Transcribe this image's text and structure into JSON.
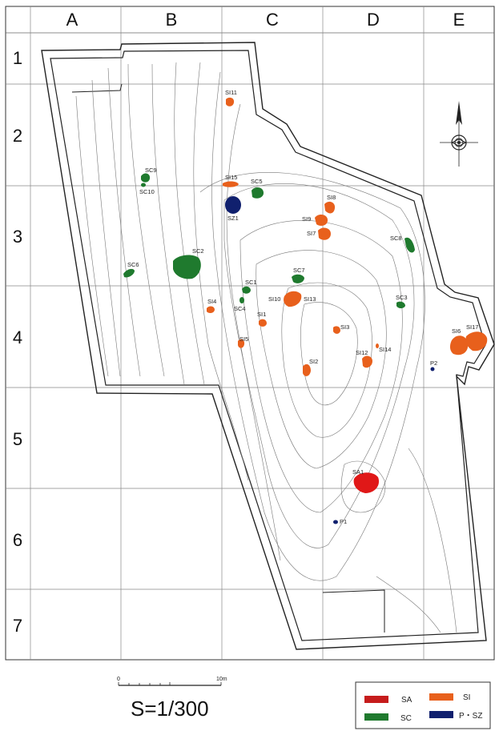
{
  "grid": {
    "columns": [
      "A",
      "B",
      "C",
      "D",
      "E"
    ],
    "rows": [
      "1",
      "2",
      "3",
      "4",
      "5",
      "6",
      "7"
    ]
  },
  "colors": {
    "SA": "#e01818",
    "SI": "#e8601c",
    "SC": "#1f7a2e",
    "PSZ": "#10206e"
  },
  "features": [
    {
      "label": "SI11",
      "type": "SI"
    },
    {
      "label": "SC9",
      "type": "SC"
    },
    {
      "label": "SC10",
      "type": "SC"
    },
    {
      "label": "SI15",
      "type": "SI"
    },
    {
      "label": "SC5",
      "type": "SC"
    },
    {
      "label": "SZ1",
      "type": "PSZ"
    },
    {
      "label": "SI8",
      "type": "SI"
    },
    {
      "label": "SI9",
      "type": "SI"
    },
    {
      "label": "SI7",
      "type": "SI"
    },
    {
      "label": "SC8",
      "type": "SC"
    },
    {
      "label": "SC6",
      "type": "SC"
    },
    {
      "label": "SC2",
      "type": "SC"
    },
    {
      "label": "SC7",
      "type": "SC"
    },
    {
      "label": "SC1",
      "type": "SC"
    },
    {
      "label": "SC4",
      "type": "SC"
    },
    {
      "label": "SI10",
      "type": "SI"
    },
    {
      "label": "SI13",
      "type": "SI"
    },
    {
      "label": "SC3",
      "type": "SC"
    },
    {
      "label": "SI4",
      "type": "SI"
    },
    {
      "label": "SI1",
      "type": "SI"
    },
    {
      "label": "SI3",
      "type": "SI"
    },
    {
      "label": "SI6",
      "type": "SI"
    },
    {
      "label": "SI17",
      "type": "SI"
    },
    {
      "label": "SI5",
      "type": "SI"
    },
    {
      "label": "SI12",
      "type": "SI"
    },
    {
      "label": "SI14",
      "type": "SI"
    },
    {
      "label": "SI2",
      "type": "SI"
    },
    {
      "label": "P2",
      "type": "PSZ"
    },
    {
      "label": "SA1",
      "type": "SA"
    },
    {
      "label": "P1",
      "type": "PSZ"
    }
  ],
  "scale": {
    "start": "0",
    "end": "10m",
    "ratio": "S=1/300"
  },
  "legend": {
    "sa": "SA",
    "si": "SI",
    "sc": "SC",
    "psz": "P・SZ"
  }
}
